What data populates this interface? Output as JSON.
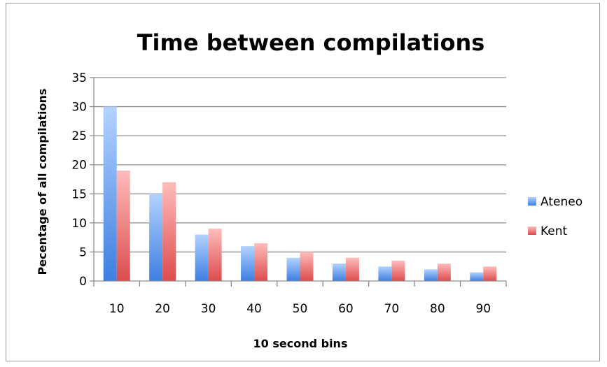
{
  "chart_data": {
    "type": "bar",
    "title": "Time between compilations",
    "xlabel": "10 second bins",
    "ylabel": "Pecentage of all compilations",
    "categories": [
      "10",
      "20",
      "30",
      "40",
      "50",
      "60",
      "70",
      "80",
      "90"
    ],
    "series": [
      {
        "name": "Ateneo",
        "values": [
          30,
          15,
          8,
          6,
          4,
          3,
          2.5,
          2,
          1.5
        ],
        "color_top": "#b3d3ff",
        "color_bottom": "#3d7ee0"
      },
      {
        "name": "Kent",
        "values": [
          19,
          17,
          9,
          6.5,
          5,
          4,
          3.5,
          3,
          2.5
        ],
        "color_top": "#ffbcbc",
        "color_bottom": "#dc4c4c"
      }
    ],
    "ylim": [
      0,
      35
    ],
    "yticks": [
      "0",
      "5",
      "10",
      "15",
      "20",
      "25",
      "30",
      "35"
    ],
    "grid": true,
    "legend": "right"
  }
}
